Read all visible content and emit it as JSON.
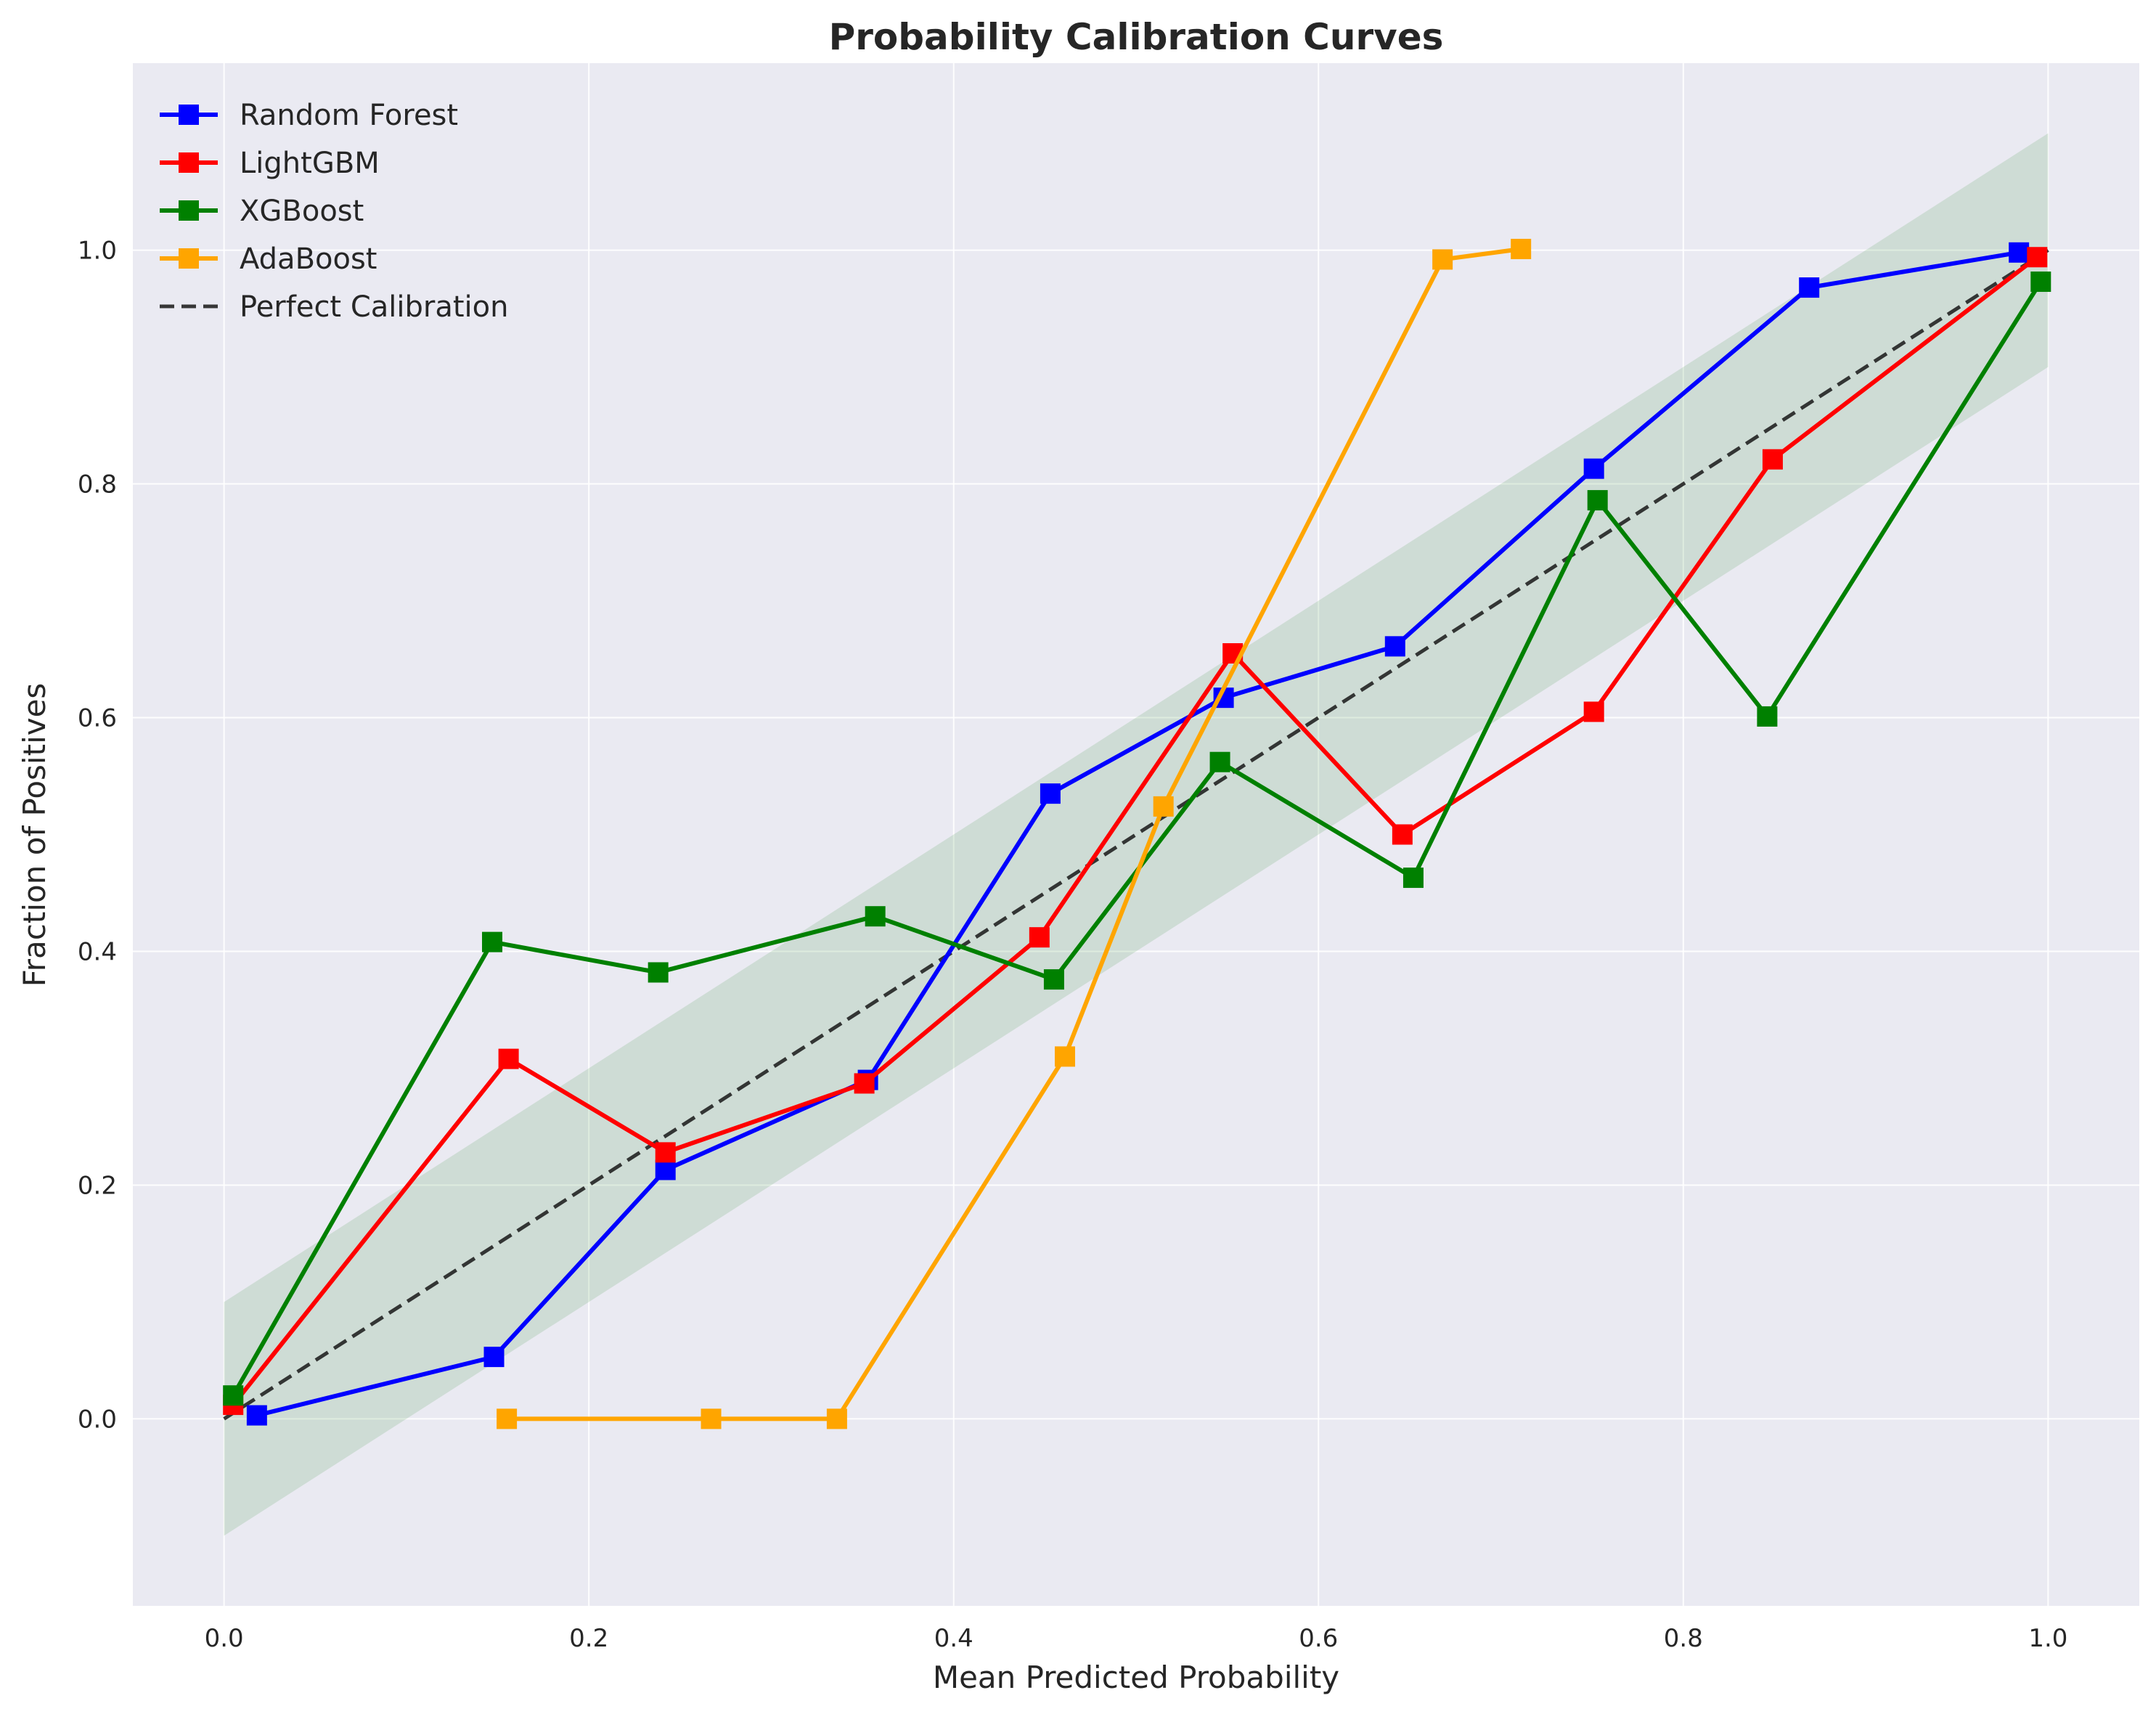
{
  "chart_data": {
    "type": "line",
    "title": "Probability Calibration Curves",
    "xlabel": "Mean Predicted Probability",
    "ylabel": "Fraction of Positives",
    "xlim": [
      -0.05,
      1.05
    ],
    "ylim": [
      -0.16,
      1.16
    ],
    "xticks": [
      0.0,
      0.2,
      0.4,
      0.6,
      0.8,
      1.0
    ],
    "xtick_labels": [
      "0.0",
      "0.2",
      "0.4",
      "0.6",
      "0.8",
      "1.0"
    ],
    "yticks": [
      0.0,
      0.2,
      0.4,
      0.6,
      0.8,
      1.0
    ],
    "ytick_labels": [
      "0.0",
      "0.2",
      "0.4",
      "0.6",
      "0.8",
      "1.0"
    ],
    "grid": true,
    "legend_position": "top-left",
    "background_color": "#eaeaf2",
    "band": {
      "description": "shaded tolerance band around perfect calibration",
      "color": "#2e8b2e",
      "x": [
        0.0,
        1.0
      ],
      "lower": [
        -0.1,
        0.9
      ],
      "upper": [
        0.1,
        1.1
      ]
    },
    "reference_line": {
      "name": "Perfect Calibration",
      "x": [
        0.0,
        1.0
      ],
      "y": [
        0.0,
        1.0
      ],
      "color": "#222222",
      "style": "dashed"
    },
    "series": [
      {
        "name": "Random Forest",
        "color": "#0000ff",
        "marker": "square",
        "x": [
          0.018,
          0.148,
          0.242,
          0.353,
          0.453,
          0.548,
          0.642,
          0.751,
          0.869,
          0.984
        ],
        "y": [
          0.003,
          0.053,
          0.213,
          0.29,
          0.535,
          0.617,
          0.661,
          0.813,
          0.968,
          0.998
        ]
      },
      {
        "name": "LightGBM",
        "color": "#ff0000",
        "marker": "square",
        "x": [
          0.005,
          0.156,
          0.242,
          0.351,
          0.447,
          0.553,
          0.646,
          0.751,
          0.849,
          0.994
        ],
        "y": [
          0.012,
          0.308,
          0.228,
          0.287,
          0.412,
          0.655,
          0.5,
          0.605,
          0.821,
          0.994
        ]
      },
      {
        "name": "XGBoost",
        "color": "#008000",
        "marker": "square",
        "x": [
          0.005,
          0.147,
          0.238,
          0.357,
          0.455,
          0.546,
          0.652,
          0.753,
          0.846,
          0.996
        ],
        "y": [
          0.02,
          0.408,
          0.382,
          0.43,
          0.376,
          0.562,
          0.463,
          0.786,
          0.601,
          0.973
        ]
      },
      {
        "name": "AdaBoost",
        "color": "#ffa500",
        "marker": "square",
        "x": [
          0.155,
          0.267,
          0.336,
          0.461,
          0.515,
          0.668,
          0.711
        ],
        "y": [
          0.0,
          0.0,
          0.0,
          0.31,
          0.524,
          0.992,
          1.001
        ]
      }
    ]
  }
}
